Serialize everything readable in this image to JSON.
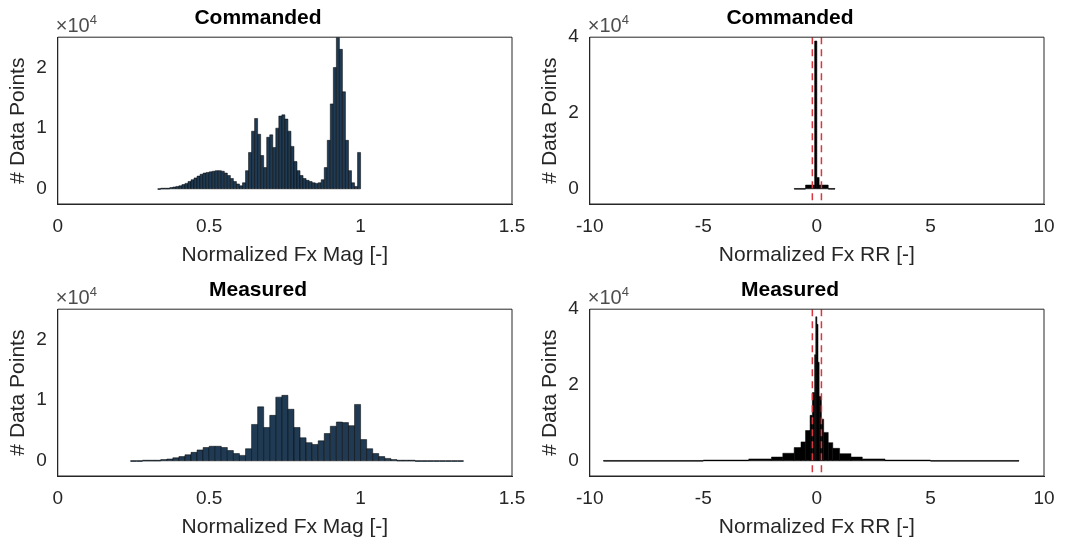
{
  "chart_data": [
    {
      "type": "histogram",
      "title": "Commanded",
      "xlabel": "Normalized Fx Mag [-]",
      "ylabel": "# Data Points",
      "color": "#1f3a52",
      "xlim": [
        0,
        1.5
      ],
      "xticks": [
        0,
        0.5,
        1,
        1.5
      ],
      "ylim": [
        -0.25,
        2.5
      ],
      "yticks": [
        0,
        1,
        2
      ],
      "annotations": [
        "×10$^{4}$"
      ],
      "bins": [
        0.33,
        0.34,
        0.35,
        0.36,
        0.37,
        0.38,
        0.39,
        0.4,
        0.41,
        0.42,
        0.43,
        0.44,
        0.45,
        0.46,
        0.47,
        0.48,
        0.49,
        0.5,
        0.51,
        0.52,
        0.53,
        0.54,
        0.55,
        0.56,
        0.57,
        0.58,
        0.59,
        0.6,
        0.61,
        0.62,
        0.63,
        0.64,
        0.65,
        0.66,
        0.67,
        0.68,
        0.69,
        0.7,
        0.71,
        0.72,
        0.73,
        0.74,
        0.75,
        0.76,
        0.77,
        0.78,
        0.79,
        0.8,
        0.81,
        0.82,
        0.83,
        0.84,
        0.85,
        0.86,
        0.87,
        0.88,
        0.89,
        0.9,
        0.91,
        0.92,
        0.93,
        0.94,
        0.95,
        0.96,
        0.97,
        0.98,
        0.99,
        1.0
      ],
      "values": [
        0,
        0.01,
        0.01,
        0.01,
        0.02,
        0.03,
        0.04,
        0.05,
        0.07,
        0.09,
        0.12,
        0.15,
        0.18,
        0.21,
        0.24,
        0.26,
        0.27,
        0.28,
        0.29,
        0.3,
        0.3,
        0.29,
        0.26,
        0.22,
        0.17,
        0.12,
        0.08,
        0.05,
        0.1,
        0.3,
        0.6,
        0.95,
        1.16,
        0.9,
        0.55,
        0.35,
        0.85,
        0.89,
        0.68,
        1.0,
        1.2,
        1.22,
        1.15,
        0.95,
        0.7,
        0.45,
        0.3,
        0.22,
        0.17,
        0.14,
        0.12,
        0.1,
        0.09,
        0.1,
        0.15,
        0.35,
        0.8,
        1.4,
        2.0,
        2.5,
        2.3,
        1.6,
        0.8,
        0.3,
        0.1,
        0.04,
        0.6
      ]
    },
    {
      "type": "histogram",
      "title": "Commanded",
      "xlabel": "Normalized Fx RR [-]",
      "ylabel": "# Data Points",
      "color": "#000000",
      "xlim": [
        -10,
        10
      ],
      "xticks": [
        -10,
        -5,
        0,
        5,
        10
      ],
      "ylim": [
        -0.4,
        4
      ],
      "yticks": [
        0,
        2,
        4
      ],
      "annotations": [
        "×10$^{4}$"
      ],
      "bins": [
        -1,
        -0.5,
        -0.1,
        0,
        0.1,
        0.5,
        0.8
      ],
      "values": [
        0.01,
        0.1,
        3.9,
        0.3,
        0.1,
        0.01
      ],
      "ref_lines": [
        {
          "axis": "x",
          "value": -0.2,
          "color": "#d9363e",
          "line_style": "dashed"
        },
        {
          "axis": "x",
          "value": 0.2,
          "color": "#d9363e",
          "line_style": "dashed"
        }
      ]
    },
    {
      "type": "histogram",
      "title": "Measured",
      "xlabel": "Normalized Fx Mag [-]",
      "ylabel": "# Data Points",
      "color": "#1f3a52",
      "xlim": [
        0,
        1.5
      ],
      "xticks": [
        0,
        0.5,
        1,
        1.5
      ],
      "ylim": [
        -0.25,
        2.5
      ],
      "yticks": [
        0,
        1,
        2
      ],
      "annotations": [
        "×10$^{4}$"
      ],
      "bins": [
        0.24,
        0.26,
        0.28,
        0.3,
        0.32,
        0.34,
        0.36,
        0.38,
        0.4,
        0.42,
        0.44,
        0.46,
        0.48,
        0.5,
        0.52,
        0.54,
        0.56,
        0.58,
        0.6,
        0.62,
        0.64,
        0.66,
        0.68,
        0.7,
        0.72,
        0.74,
        0.76,
        0.78,
        0.8,
        0.82,
        0.84,
        0.86,
        0.88,
        0.9,
        0.92,
        0.94,
        0.96,
        0.98,
        1.0,
        1.02,
        1.04,
        1.06,
        1.08,
        1.1,
        1.12,
        1.14,
        1.16,
        1.18,
        1.2,
        1.22,
        1.24,
        1.26,
        1.28,
        1.3,
        1.32,
        1.34
      ],
      "values": [
        0,
        0,
        0.01,
        0.01,
        0.01,
        0.02,
        0.03,
        0.05,
        0.07,
        0.1,
        0.14,
        0.18,
        0.22,
        0.24,
        0.24,
        0.22,
        0.17,
        0.12,
        0.09,
        0.2,
        0.6,
        0.89,
        0.55,
        0.75,
        1.05,
        1.08,
        0.85,
        0.55,
        0.38,
        0.3,
        0.27,
        0.33,
        0.45,
        0.57,
        0.64,
        0.63,
        0.58,
        0.93,
        0.35,
        0.2,
        0.12,
        0.07,
        0.04,
        0.02,
        0.01,
        0.01,
        0.01,
        0,
        0,
        0,
        0,
        0,
        0,
        0,
        0
      ]
    },
    {
      "type": "histogram",
      "title": "Measured",
      "xlabel": "Normalized Fx RR [-]",
      "ylabel": "# Data Points",
      "color": "#000000",
      "xlim": [
        -10,
        10
      ],
      "xticks": [
        -10,
        -5,
        0,
        5,
        10
      ],
      "ylim": [
        -0.4,
        4
      ],
      "yticks": [
        0,
        2,
        4
      ],
      "annotations": [
        "×10$^{4}$"
      ],
      "bins": [
        -9.4,
        -5,
        -3,
        -2,
        -1.5,
        -1,
        -0.7,
        -0.5,
        -0.3,
        -0.2,
        -0.1,
        -0.05,
        0,
        0.05,
        0.1,
        0.2,
        0.3,
        0.5,
        0.7,
        1,
        1.5,
        2,
        3,
        5,
        8.9
      ],
      "values": [
        0.01,
        0.02,
        0.05,
        0.1,
        0.2,
        0.35,
        0.5,
        0.8,
        1.2,
        1.8,
        2.8,
        3.8,
        3.6,
        2.6,
        1.7,
        1.1,
        0.75,
        0.48,
        0.33,
        0.19,
        0.1,
        0.05,
        0.02,
        0.01
      ],
      "ref_lines": [
        {
          "axis": "x",
          "value": -0.2,
          "color": "#d9363e",
          "line_style": "dashed"
        },
        {
          "axis": "x",
          "value": 0.2,
          "color": "#d9363e",
          "line_style": "dashed"
        }
      ]
    }
  ]
}
